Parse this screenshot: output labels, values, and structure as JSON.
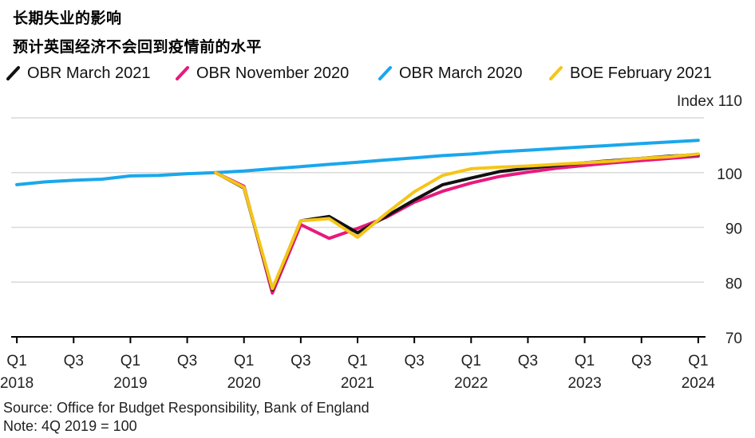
{
  "title": "长期失业的影响",
  "subtitle": "预计英国经济不会回到疫情前的水平",
  "source": "Source: Office for Budget Responsibility, Bank of England",
  "note": "Note: 4Q 2019 = 100",
  "colors": {
    "OBR March 2021": "#111111",
    "OBR November 2020": "#e8197d",
    "OBR March 2020": "#1aa7ec",
    "BOE February 2021": "#f5c518",
    "grid": "#d9d9d9",
    "axis": "#000000"
  },
  "chart_data": {
    "type": "line",
    "y_unit_label": "Index 110",
    "ylim": [
      70,
      110
    ],
    "y_ticks": [
      "100",
      "90",
      "80",
      "70"
    ],
    "y_tick_values": [
      100,
      90,
      80,
      70
    ],
    "x_tick_labels": [
      {
        "q": "Q1",
        "year": "2018"
      },
      {
        "q": "Q3",
        "year": ""
      },
      {
        "q": "Q1",
        "year": "2019"
      },
      {
        "q": "Q3",
        "year": ""
      },
      {
        "q": "Q1",
        "year": "2020"
      },
      {
        "q": "Q3",
        "year": ""
      },
      {
        "q": "Q1",
        "year": "2021"
      },
      {
        "q": "Q3",
        "year": ""
      },
      {
        "q": "Q1",
        "year": "2022"
      },
      {
        "q": "Q3",
        "year": ""
      },
      {
        "q": "Q1",
        "year": "2023"
      },
      {
        "q": "Q3",
        "year": ""
      },
      {
        "q": "Q1",
        "year": "2024"
      }
    ],
    "x_tick_positions": [
      2018.0,
      2018.5,
      2019.0,
      2019.5,
      2020.0,
      2020.5,
      2021.0,
      2021.5,
      2022.0,
      2022.5,
      2023.0,
      2023.5,
      2024.0
    ],
    "xlim": [
      2017.95,
      2024.05
    ],
    "series": [
      {
        "name": "OBR March 2020",
        "x": [
          2018.0,
          2018.25,
          2018.5,
          2018.75,
          2019.0,
          2019.25,
          2019.5,
          2019.75,
          2020.0,
          2020.25,
          2020.5,
          2020.75,
          2021.0,
          2021.25,
          2021.5,
          2021.75,
          2022.0,
          2022.25,
          2022.5,
          2022.75,
          2023.0,
          2023.25,
          2023.5,
          2023.75,
          2024.0
        ],
        "values": [
          97.8,
          98.3,
          98.6,
          98.8,
          99.4,
          99.5,
          99.8,
          100.0,
          100.3,
          100.7,
          101.1,
          101.5,
          101.9,
          102.3,
          102.7,
          103.1,
          103.4,
          103.8,
          104.1,
          104.4,
          104.7,
          105.0,
          105.3,
          105.6,
          105.9
        ]
      },
      {
        "name": "OBR November 2020",
        "x": [
          2019.75,
          2020.0,
          2020.25,
          2020.5,
          2020.75,
          2021.0,
          2021.25,
          2021.5,
          2021.75,
          2022.0,
          2022.25,
          2022.5,
          2022.75,
          2023.0,
          2023.25,
          2023.5,
          2023.75,
          2024.0
        ],
        "values": [
          100.0,
          97.5,
          78.0,
          90.5,
          88.0,
          89.8,
          91.8,
          94.6,
          96.6,
          98.1,
          99.3,
          100.1,
          100.8,
          101.3,
          101.8,
          102.2,
          102.6,
          103.0
        ]
      },
      {
        "name": "OBR March 2021",
        "x": [
          2019.75,
          2020.0,
          2020.25,
          2020.5,
          2020.75,
          2021.0,
          2021.25,
          2021.5,
          2021.75,
          2022.0,
          2022.25,
          2022.5,
          2022.75,
          2023.0,
          2023.25,
          2023.5,
          2023.75,
          2024.0
        ],
        "values": [
          100.0,
          97.2,
          78.6,
          91.2,
          92.0,
          89.0,
          92.0,
          95.0,
          97.8,
          99.0,
          100.2,
          100.8,
          101.3,
          101.8,
          102.2,
          102.6,
          103.0,
          103.3
        ]
      },
      {
        "name": "BOE February 2021",
        "x": [
          2019.75,
          2020.0,
          2020.25,
          2020.5,
          2020.75,
          2021.0,
          2021.25,
          2021.5,
          2021.75,
          2022.0,
          2022.25,
          2022.5,
          2022.75,
          2023.0,
          2023.25,
          2023.5,
          2023.75,
          2024.0
        ],
        "values": [
          100.0,
          97.3,
          78.8,
          91.2,
          91.6,
          88.2,
          92.5,
          96.5,
          99.5,
          100.7,
          101.0,
          101.2,
          101.5,
          101.8,
          102.1,
          102.6,
          102.9,
          103.4
        ]
      }
    ],
    "legend": {
      "position": "top",
      "entries": [
        "OBR March 2021",
        "OBR November 2020",
        "OBR March 2020",
        "BOE February 2021"
      ]
    }
  }
}
